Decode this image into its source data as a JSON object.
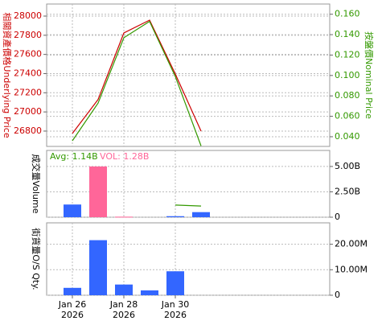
{
  "chart_data": [
    {
      "type": "line",
      "ylabel": "相關資產價格Underlying Price",
      "y2label": "按盤價Nominal Price",
      "ylim": [
        26640,
        28126
      ],
      "yticks": [
        26800,
        27000,
        27200,
        27400,
        27600,
        27800,
        28000
      ],
      "y2lim": [
        0.0305,
        0.17
      ],
      "y2ticks": [
        {
          "value": 0.04,
          "label": "0.040"
        },
        {
          "value": 0.06,
          "label": "0.060"
        },
        {
          "value": 0.08,
          "label": "0.080"
        },
        {
          "value": 0.1,
          "label": "0.100"
        },
        {
          "value": 0.12,
          "label": "0.120"
        },
        {
          "value": 0.14,
          "label": "0.140"
        },
        {
          "value": 0.16,
          "label": "0.160"
        }
      ],
      "grid": true,
      "series": [
        {
          "name": "Underlying",
          "color": "#cc0000",
          "values": [
            26775,
            27130,
            27824,
            27958,
            27395,
            26800
          ]
        },
        {
          "name": "Nominal",
          "color": "#339900",
          "axis": "y2",
          "values": [
            0.036,
            0.073,
            0.137,
            0.153,
            0.099,
            0.031
          ]
        }
      ]
    },
    {
      "type": "bar",
      "ylabel": "成交量Volume",
      "annotations": [
        "Avg: 1.14B",
        "VOL: 1.28B"
      ],
      "ylim": [
        0,
        6.58
      ],
      "yticks": [
        0,
        {
          "value": 2.5,
          "label": "2.50B"
        },
        {
          "value": 5,
          "label": "5.00B"
        }
      ],
      "grid": true,
      "values": [
        1.25,
        5.0,
        0.05,
        null,
        0.1,
        0.5
      ],
      "colors": [
        "#3366ff",
        "#ff6699",
        "#ff6699",
        null,
        "#3366ff",
        "#3366ff"
      ],
      "avg": {
        "color": "#339900",
        "values": [
          null,
          null,
          null,
          null,
          1.2,
          1.1
        ]
      }
    },
    {
      "type": "bar",
      "ylabel": "街貨量O/S Qty.",
      "color": "#3366ff",
      "ylim": [
        0,
        28.4
      ],
      "yticks": [
        0,
        {
          "value": 10,
          "label": "10.00M"
        },
        {
          "value": 20,
          "label": "20.00M"
        }
      ],
      "grid": true,
      "categories": [
        "Jan 26",
        null,
        "Jan 28",
        null,
        "Jan 30",
        null
      ],
      "category_years": [
        "2026",
        null,
        "2026",
        null,
        "2026",
        null
      ],
      "values": [
        2.9,
        21.6,
        4.2,
        1.9,
        9.4,
        null
      ]
    }
  ]
}
